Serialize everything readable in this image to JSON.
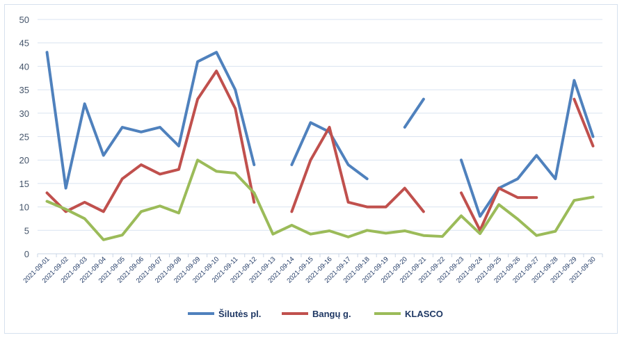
{
  "chart_data": {
    "type": "line",
    "title": "",
    "xlabel": "",
    "ylabel": "",
    "ylim": [
      0,
      50
    ],
    "yticks": [
      "0",
      "5",
      "10",
      "15",
      "20",
      "25",
      "30",
      "35",
      "40",
      "45",
      "50"
    ],
    "grid": true,
    "legend_position": "bottom",
    "categories": [
      "2021-09-01",
      "2021-09-02",
      "2021-09-03",
      "2021-09-04",
      "2021-09-05",
      "2021-09-06",
      "2021-09-07",
      "2021-09-08",
      "2021-09-09",
      "2021-09-10",
      "2021-09-11",
      "2021-09-12",
      "2021-09-13",
      "2021-09-14",
      "2021-09-15",
      "2021-09-16",
      "2021-09-17",
      "2021-09-18",
      "2021-09-19",
      "2021-09-20",
      "2021-09-21",
      "2021-09-22",
      "2021-09-23",
      "2021-09-24",
      "2021-09-25",
      "2021-09-26",
      "2021-09-27",
      "2021-09-28",
      "2021-09-29",
      "2021-09-30"
    ],
    "series": [
      {
        "name": "Šilutės pl.",
        "color": "#4f81bd",
        "values": [
          43,
          14,
          32,
          21,
          27,
          26,
          27,
          23,
          41,
          43,
          35,
          19,
          null,
          19,
          28,
          26,
          19,
          16,
          null,
          27,
          33,
          null,
          20,
          8,
          14,
          16,
          21,
          16,
          37,
          25
        ]
      },
      {
        "name": "Bangų g.",
        "color": "#c0504d",
        "values": [
          13,
          9,
          11,
          9,
          16,
          19,
          17,
          18,
          33,
          39,
          31,
          11,
          null,
          9,
          20,
          27,
          11,
          10,
          10,
          14,
          9,
          null,
          13,
          5,
          14,
          12,
          12,
          null,
          33,
          23
        ]
      },
      {
        "name": "KLASCO",
        "color": "#9bbb59",
        "values": [
          11.2,
          9.5,
          7.5,
          3,
          4,
          9,
          10.2,
          8.7,
          20,
          17.6,
          17.2,
          13,
          4.2,
          6.1,
          4.2,
          4.9,
          3.6,
          5,
          4.4,
          4.9,
          3.9,
          3.7,
          8.1,
          4.3,
          10.5,
          7.4,
          3.9,
          4.8,
          11.4,
          12.1
        ]
      }
    ]
  }
}
